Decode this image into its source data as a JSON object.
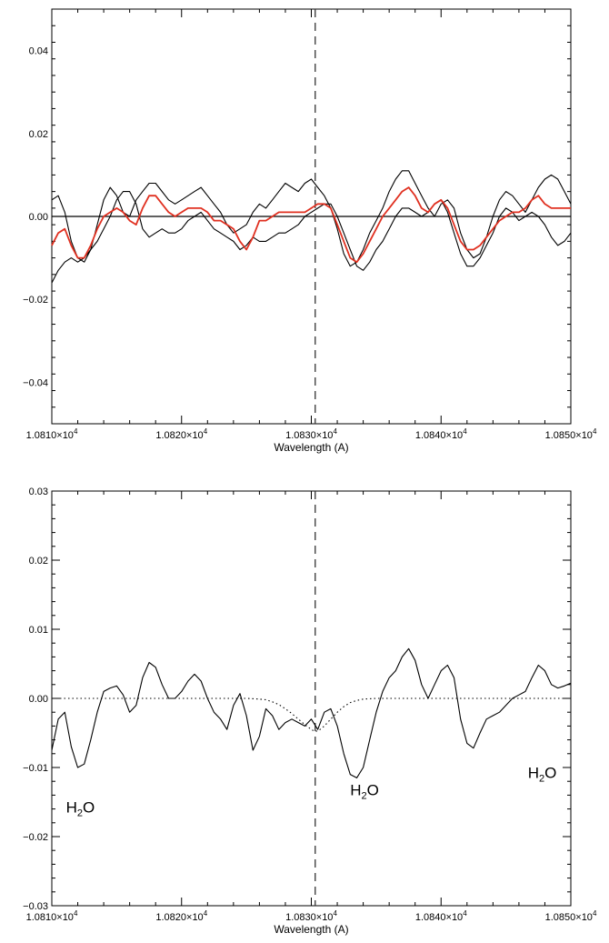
{
  "chart_data": [
    {
      "type": "line",
      "title": "",
      "xlabel": "Wavelength (A)",
      "ylabel": "",
      "xlim": [
        10810,
        10850
      ],
      "ylim": [
        -0.05,
        0.05
      ],
      "x_ticks": [
        {
          "value": 10810,
          "mant": "1.0810",
          "exp": "4"
        },
        {
          "value": 10820,
          "mant": "1.0820",
          "exp": "4"
        },
        {
          "value": 10830,
          "mant": "1.0830",
          "exp": "4"
        },
        {
          "value": 10840,
          "mant": "1.0840",
          "exp": "4"
        },
        {
          "value": 10850,
          "mant": "1.0850",
          "exp": "4"
        }
      ],
      "x_ticks_text": [
        "1.0810×10⁴",
        "1.0820×10⁴",
        "1.0830×10⁴",
        "1.0840×10⁴",
        "1.0850×10⁴"
      ],
      "y_ticks": [
        {
          "value": 0.04,
          "label": "0.04"
        },
        {
          "value": 0.02,
          "label": "0.02"
        },
        {
          "value": 0.0,
          "label": "0.00"
        },
        {
          "value": -0.02,
          "label": "−0.02"
        },
        {
          "value": -0.04,
          "label": "−0.04"
        }
      ],
      "vline_x": 10830.3,
      "hline_y": 0.0,
      "series": [
        {
          "color": "#000000",
          "style": "solid",
          "x": [
            10810,
            10810.5,
            10811,
            10811.5,
            10812,
            10812.5,
            10813,
            10813.5,
            10814,
            10814.5,
            10815,
            10815.5,
            10816,
            10816.5,
            10817,
            10817.5,
            10818,
            10818.5,
            10819,
            10819.5,
            10820,
            10820.5,
            10821,
            10821.5,
            10822,
            10822.5,
            10823,
            10823.5,
            10824,
            10824.5,
            10825,
            10825.5,
            10826,
            10826.5,
            10827,
            10827.5,
            10828,
            10828.5,
            10829,
            10829.5,
            10830,
            10830.5,
            10831,
            10831.5,
            10832,
            10832.5,
            10833,
            10833.5,
            10834,
            10834.5,
            10835,
            10835.5,
            10836,
            10836.5,
            10837,
            10837.5,
            10838,
            10838.5,
            10839,
            10839.5,
            10840,
            10840.5,
            10841,
            10841.5,
            10842,
            10842.5,
            10843,
            10843.5,
            10844,
            10844.5,
            10845,
            10845.5,
            10846,
            10846.5,
            10847,
            10847.5,
            10848,
            10848.5,
            10849,
            10849.5,
            10850
          ],
          "y": [
            0.004,
            0.005,
            0.001,
            -0.006,
            -0.01,
            -0.011,
            -0.008,
            -0.002,
            0.004,
            0.007,
            0.005,
            0.001,
            0.0,
            0.004,
            0.006,
            0.008,
            0.008,
            0.006,
            0.004,
            0.003,
            0.004,
            0.005,
            0.006,
            0.007,
            0.005,
            0.003,
            0.001,
            -0.002,
            -0.004,
            -0.003,
            -0.002,
            0.001,
            0.003,
            0.002,
            0.004,
            0.006,
            0.008,
            0.007,
            0.006,
            0.008,
            0.009,
            0.007,
            0.005,
            0.002,
            -0.003,
            -0.009,
            -0.012,
            -0.011,
            -0.008,
            -0.004,
            -0.001,
            0.002,
            0.006,
            0.009,
            0.011,
            0.011,
            0.008,
            0.005,
            0.002,
            0.0,
            0.003,
            0.004,
            0.002,
            -0.004,
            -0.008,
            -0.01,
            -0.009,
            -0.005,
            0.0,
            0.004,
            0.006,
            0.005,
            0.003,
            0.001,
            0.004,
            0.007,
            0.009,
            0.01,
            0.009,
            0.006,
            0.003
          ]
        },
        {
          "color": "#000000",
          "style": "solid",
          "x": [
            10810,
            10810.5,
            10811,
            10811.5,
            10812,
            10812.5,
            10813,
            10813.5,
            10814,
            10814.5,
            10815,
            10815.5,
            10816,
            10816.5,
            10817,
            10817.5,
            10818,
            10818.5,
            10819,
            10819.5,
            10820,
            10820.5,
            10821,
            10821.5,
            10822,
            10822.5,
            10823,
            10823.5,
            10824,
            10824.5,
            10825,
            10825.5,
            10826,
            10826.5,
            10827,
            10827.5,
            10828,
            10828.5,
            10829,
            10829.5,
            10830,
            10830.5,
            10831,
            10831.5,
            10832,
            10832.5,
            10833,
            10833.5,
            10834,
            10834.5,
            10835,
            10835.5,
            10836,
            10836.5,
            10837,
            10837.5,
            10838,
            10838.5,
            10839,
            10839.5,
            10840,
            10840.5,
            10841,
            10841.5,
            10842,
            10842.5,
            10843,
            10843.5,
            10844,
            10844.5,
            10845,
            10845.5,
            10846,
            10846.5,
            10847,
            10847.5,
            10848,
            10848.5,
            10849,
            10849.5,
            10850
          ],
          "y": [
            -0.016,
            -0.013,
            -0.011,
            -0.01,
            -0.011,
            -0.01,
            -0.008,
            -0.006,
            -0.003,
            0.0,
            0.004,
            0.006,
            0.006,
            0.003,
            -0.003,
            -0.005,
            -0.004,
            -0.003,
            -0.004,
            -0.004,
            -0.003,
            -0.001,
            0.0,
            0.001,
            -0.001,
            -0.003,
            -0.004,
            -0.005,
            -0.006,
            -0.008,
            -0.007,
            -0.005,
            -0.006,
            -0.006,
            -0.005,
            -0.004,
            -0.004,
            -0.003,
            -0.002,
            0.0,
            0.001,
            0.002,
            0.003,
            0.003,
            0.0,
            -0.004,
            -0.008,
            -0.012,
            -0.013,
            -0.011,
            -0.008,
            -0.006,
            -0.003,
            0.0,
            0.002,
            0.002,
            0.001,
            0.0,
            0.001,
            0.003,
            0.004,
            0.001,
            -0.004,
            -0.009,
            -0.012,
            -0.012,
            -0.01,
            -0.007,
            -0.004,
            0.0,
            0.002,
            0.001,
            -0.001,
            0.0,
            0.001,
            0.0,
            -0.002,
            -0.005,
            -0.007,
            -0.006,
            -0.004
          ]
        },
        {
          "color": "#e03020",
          "style": "solid",
          "x": [
            10810,
            10810.5,
            10811,
            10811.5,
            10812,
            10812.5,
            10813,
            10813.5,
            10814,
            10814.5,
            10815,
            10815.5,
            10816,
            10816.5,
            10817,
            10817.5,
            10818,
            10818.5,
            10819,
            10819.5,
            10820,
            10820.5,
            10821,
            10821.5,
            10822,
            10822.5,
            10823,
            10823.5,
            10824,
            10824.5,
            10825,
            10825.5,
            10826,
            10826.5,
            10827,
            10827.5,
            10828,
            10828.5,
            10829,
            10829.5,
            10830,
            10830.5,
            10831,
            10831.5,
            10832,
            10832.5,
            10833,
            10833.5,
            10834,
            10834.5,
            10835,
            10835.5,
            10836,
            10836.5,
            10837,
            10837.5,
            10838,
            10838.5,
            10839,
            10839.5,
            10840,
            10840.5,
            10841,
            10841.5,
            10842,
            10842.5,
            10843,
            10843.5,
            10844,
            10844.5,
            10845,
            10845.5,
            10846,
            10846.5,
            10847,
            10847.5,
            10848,
            10848.5,
            10849,
            10849.5,
            10850
          ],
          "y": [
            -0.007,
            -0.004,
            -0.003,
            -0.007,
            -0.01,
            -0.01,
            -0.007,
            -0.003,
            0.0,
            0.001,
            0.002,
            0.001,
            -0.001,
            -0.002,
            0.002,
            0.005,
            0.005,
            0.003,
            0.001,
            0.0,
            0.001,
            0.002,
            0.002,
            0.002,
            0.001,
            -0.001,
            -0.001,
            -0.002,
            -0.003,
            -0.006,
            -0.008,
            -0.005,
            -0.001,
            -0.001,
            0.0,
            0.001,
            0.001,
            0.001,
            0.001,
            0.001,
            0.002,
            0.003,
            0.003,
            0.002,
            -0.002,
            -0.006,
            -0.01,
            -0.011,
            -0.009,
            -0.006,
            -0.003,
            0.0,
            0.002,
            0.004,
            0.006,
            0.007,
            0.005,
            0.002,
            0.001,
            0.003,
            0.004,
            0.002,
            -0.002,
            -0.006,
            -0.008,
            -0.008,
            -0.007,
            -0.005,
            -0.003,
            -0.001,
            0.0,
            0.001,
            0.001,
            0.002,
            0.004,
            0.005,
            0.003,
            0.002,
            0.002,
            0.002,
            0.002
          ]
        }
      ]
    },
    {
      "type": "line",
      "title": "",
      "xlabel": "Wavelength (A)",
      "ylabel": "",
      "xlim": [
        10810,
        10850
      ],
      "ylim": [
        -0.03,
        0.03
      ],
      "x_ticks": [
        {
          "value": 10810,
          "mant": "1.0810",
          "exp": "4"
        },
        {
          "value": 10820,
          "mant": "1.0820",
          "exp": "4"
        },
        {
          "value": 10830,
          "mant": "1.0830",
          "exp": "4"
        },
        {
          "value": 10840,
          "mant": "1.0840",
          "exp": "4"
        },
        {
          "value": 10850,
          "mant": "1.0850",
          "exp": "4"
        }
      ],
      "x_ticks_text": [
        "1.0810×10⁴",
        "1.0820×10⁴",
        "1.0830×10⁴",
        "1.0840×10⁴",
        "1.0850×10⁴"
      ],
      "y_ticks": [
        {
          "value": 0.03,
          "label": "0.03"
        },
        {
          "value": 0.02,
          "label": "0.02"
        },
        {
          "value": 0.01,
          "label": "0.01"
        },
        {
          "value": 0.0,
          "label": "0.00"
        },
        {
          "value": -0.01,
          "label": "−0.01"
        },
        {
          "value": -0.02,
          "label": "−0.02"
        },
        {
          "value": -0.03,
          "label": "−0.03"
        }
      ],
      "vline_x": 10830.3,
      "annotations": [
        {
          "text": "H₂O",
          "main": "H",
          "sub": "2",
          "tail": "O",
          "x": 10812.2,
          "y": -0.0165
        },
        {
          "text": "H₂O",
          "main": "H",
          "sub": "2",
          "tail": "O",
          "x": 10834.1,
          "y": -0.014
        },
        {
          "text": "H₂O",
          "main": "H",
          "sub": "2",
          "tail": "O",
          "x": 10847.8,
          "y": -0.0115
        }
      ],
      "series": [
        {
          "color": "#000000",
          "style": "solid",
          "x": [
            10810,
            10810.5,
            10811,
            10811.5,
            10812,
            10812.5,
            10813,
            10813.5,
            10814,
            10814.5,
            10815,
            10815.5,
            10816,
            10816.5,
            10817,
            10817.5,
            10818,
            10818.5,
            10819,
            10819.5,
            10820,
            10820.5,
            10821,
            10821.5,
            10822,
            10822.5,
            10823,
            10823.5,
            10824,
            10824.5,
            10825,
            10825.5,
            10826,
            10826.5,
            10827,
            10827.5,
            10828,
            10828.5,
            10829,
            10829.5,
            10830,
            10830.5,
            10831,
            10831.5,
            10832,
            10832.5,
            10833,
            10833.5,
            10834,
            10834.5,
            10835,
            10835.5,
            10836,
            10836.5,
            10837,
            10837.5,
            10838,
            10838.5,
            10839,
            10839.5,
            10840,
            10840.5,
            10841,
            10841.5,
            10842,
            10842.5,
            10843,
            10843.5,
            10844,
            10844.5,
            10845,
            10845.5,
            10846,
            10846.5,
            10847,
            10847.5,
            10848,
            10848.5,
            10849,
            10849.5,
            10850
          ],
          "y": [
            -0.0075,
            -0.003,
            -0.002,
            -0.007,
            -0.01,
            -0.0095,
            -0.006,
            -0.002,
            0.001,
            0.0015,
            0.0018,
            0.0005,
            -0.002,
            -0.001,
            0.003,
            0.0052,
            0.0045,
            0.002,
            0.0,
            0.0,
            0.001,
            0.0025,
            0.0035,
            0.0025,
            0.0,
            -0.002,
            -0.003,
            -0.0045,
            -0.001,
            0.0007,
            -0.0025,
            -0.0075,
            -0.0055,
            -0.0015,
            -0.0025,
            -0.0045,
            -0.0035,
            -0.003,
            -0.0035,
            -0.004,
            -0.003,
            -0.0045,
            -0.002,
            -0.0015,
            -0.004,
            -0.008,
            -0.011,
            -0.0115,
            -0.01,
            -0.006,
            -0.002,
            0.001,
            0.003,
            0.004,
            0.006,
            0.0072,
            0.0055,
            0.002,
            0.0,
            0.002,
            0.004,
            0.0048,
            0.003,
            -0.003,
            -0.0065,
            -0.0072,
            -0.005,
            -0.003,
            -0.0025,
            -0.002,
            -0.001,
            0.0,
            0.0005,
            0.001,
            0.003,
            0.0048,
            0.004,
            0.002,
            0.0015,
            0.0018,
            0.0022
          ]
        },
        {
          "color": "#000000",
          "style": "dotted",
          "x": [
            10810,
            10811,
            10812,
            10813,
            10814,
            10815,
            10816,
            10817,
            10818,
            10819,
            10820,
            10821,
            10822,
            10823,
            10824,
            10825,
            10826,
            10826.5,
            10827,
            10827.5,
            10828,
            10828.5,
            10829,
            10829.5,
            10830,
            10830.3,
            10830.6,
            10831,
            10831.5,
            10832,
            10832.5,
            10833,
            10833.5,
            10834,
            10835,
            10836,
            10837,
            10838,
            10839,
            10840,
            10841,
            10842,
            10843,
            10844,
            10845,
            10846,
            10847,
            10848,
            10849,
            10850
          ],
          "y": [
            0,
            0,
            0,
            0,
            0,
            0,
            0,
            0,
            0,
            0,
            0,
            0,
            0,
            0,
            0,
            0,
            -0.0001,
            -0.0002,
            -0.0005,
            -0.0009,
            -0.0015,
            -0.0022,
            -0.003,
            -0.0038,
            -0.0045,
            -0.0048,
            -0.0046,
            -0.004,
            -0.003,
            -0.002,
            -0.0012,
            -0.0006,
            -0.0003,
            -0.0001,
            0,
            0,
            0,
            0,
            0,
            0,
            0,
            0,
            0,
            0,
            0,
            0,
            0,
            0,
            0,
            0
          ]
        }
      ]
    }
  ]
}
